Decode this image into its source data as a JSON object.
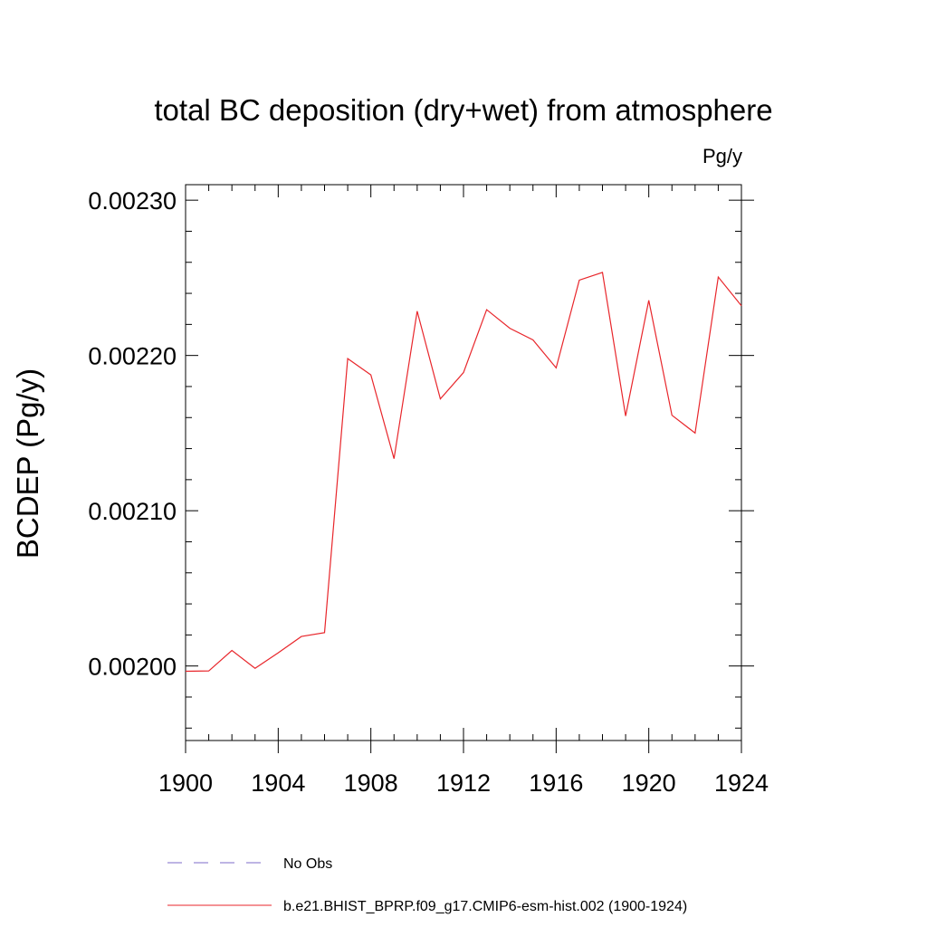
{
  "chart_data": {
    "type": "line",
    "title": "total BC deposition (dry+wet) from atmosphere",
    "units_label": "Pg/y",
    "xlabel": "",
    "ylabel": "BCDEP  (Pg/y)",
    "xlim": [
      1900,
      1924
    ],
    "ylim": [
      0.001952,
      0.00231
    ],
    "x_ticks": [
      1900,
      1904,
      1908,
      1912,
      1916,
      1920,
      1924
    ],
    "x_tick_labels": [
      "1900",
      "1904",
      "1908",
      "1912",
      "1916",
      "1920",
      "1924"
    ],
    "y_ticks": [
      0.002,
      0.0021,
      0.0022,
      0.0023
    ],
    "y_tick_labels": [
      "0.00200",
      "0.00210",
      "0.00220",
      "0.00230"
    ],
    "y_minor_step": 2e-05,
    "grid": false,
    "series": [
      {
        "name": "b.e21.BHIST_BPRP.f09_g17.CMIP6-esm-hist.002 (1900-1924)",
        "color": "#e8262b",
        "style": "solid",
        "x": [
          1900,
          1901,
          1902,
          1903,
          1904,
          1905,
          1906,
          1907,
          1908,
          1909,
          1910,
          1911,
          1912,
          1913,
          1914,
          1915,
          1916,
          1917,
          1918,
          1919,
          1920,
          1921,
          1922,
          1923,
          1924
        ],
        "values": [
          0.0019966,
          0.0019968,
          0.00201,
          0.0019985,
          0.0020085,
          0.002019,
          0.0020215,
          0.002198,
          0.0021875,
          0.0021335,
          0.0022285,
          0.002172,
          0.002189,
          0.0022295,
          0.0022175,
          0.00221,
          0.002192,
          0.0022485,
          0.0022535,
          0.002161,
          0.0022355,
          0.0021615,
          0.00215,
          0.0022505,
          0.002232
        ]
      }
    ],
    "legend": [
      {
        "label": "No Obs",
        "color": "#7d6bc8",
        "style": "dashed"
      },
      {
        "label": "b.e21.BHIST_BPRP.f09_g17.CMIP6-esm-hist.002 (1900-1924)",
        "color": "#e8262b",
        "style": "solid"
      }
    ],
    "legend_position": "bottom"
  }
}
